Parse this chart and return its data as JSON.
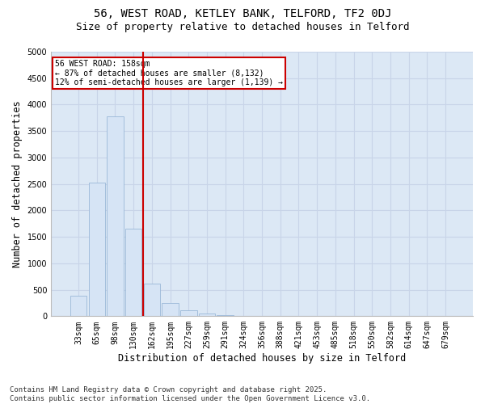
{
  "title1": "56, WEST ROAD, KETLEY BANK, TELFORD, TF2 0DJ",
  "title2": "Size of property relative to detached houses in Telford",
  "xlabel": "Distribution of detached houses by size in Telford",
  "ylabel": "Number of detached properties",
  "categories": [
    "33sqm",
    "65sqm",
    "98sqm",
    "130sqm",
    "162sqm",
    "195sqm",
    "227sqm",
    "259sqm",
    "291sqm",
    "324sqm",
    "356sqm",
    "388sqm",
    "421sqm",
    "453sqm",
    "485sqm",
    "518sqm",
    "550sqm",
    "582sqm",
    "614sqm",
    "647sqm",
    "679sqm"
  ],
  "values": [
    380,
    2530,
    3780,
    1650,
    610,
    250,
    110,
    55,
    25,
    0,
    0,
    0,
    0,
    0,
    0,
    0,
    0,
    0,
    0,
    0,
    0
  ],
  "bar_color": "#d6e4f5",
  "bar_edge_color": "#9ab8d8",
  "annotation_text1": "56 WEST ROAD: 158sqm",
  "annotation_text2": "← 87% of detached houses are smaller (8,132)",
  "annotation_text3": "12% of semi-detached houses are larger (1,139) →",
  "annotation_box_color": "#ffffff",
  "annotation_box_edge_color": "#cc0000",
  "vline_color": "#cc0000",
  "ylim": [
    0,
    5000
  ],
  "yticks": [
    0,
    500,
    1000,
    1500,
    2000,
    2500,
    3000,
    3500,
    4000,
    4500,
    5000
  ],
  "grid_color": "#c8d4e8",
  "background_color": "#ffffff",
  "plot_background": "#dce8f5",
  "footer1": "Contains HM Land Registry data © Crown copyright and database right 2025.",
  "footer2": "Contains public sector information licensed under the Open Government Licence v3.0.",
  "title_fontsize": 10,
  "subtitle_fontsize": 9,
  "axis_label_fontsize": 8.5,
  "tick_fontsize": 7,
  "footer_fontsize": 6.5,
  "vline_x": 3.5
}
